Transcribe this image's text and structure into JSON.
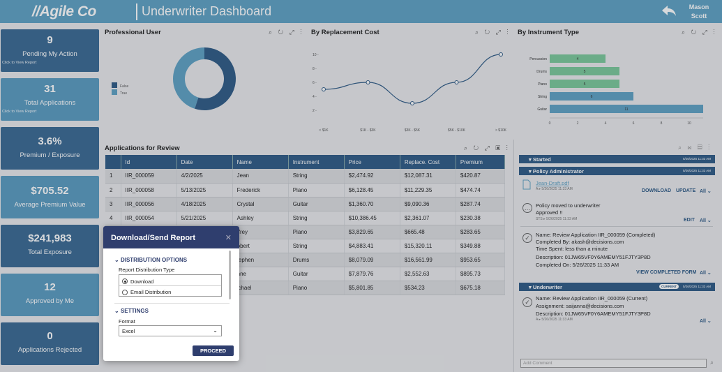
{
  "header": {
    "logo": "//Agile Co",
    "title": "Underwriter Dashboard",
    "user_first": "Mason",
    "user_last": "Scott"
  },
  "tiles": [
    {
      "value": "9",
      "label": "Pending My Action",
      "sub": "Click to View Report"
    },
    {
      "value": "31",
      "label": "Total Applications",
      "sub": "Click to View Report"
    },
    {
      "value": "3.6%",
      "label": "Premium / Exposure"
    },
    {
      "value": "$705.52",
      "label": "Average Premium Value"
    },
    {
      "value": "$241,983",
      "label": "Total Exposure"
    },
    {
      "value": "12",
      "label": "Approved by Me"
    },
    {
      "value": "0",
      "label": "Applications Rejected"
    }
  ],
  "panels": {
    "professional": "Professional User",
    "replacement": "By Replacement Cost",
    "instrument": "By Instrument Type",
    "grid": "Applications for Review"
  },
  "chart_data": [
    {
      "type": "pie",
      "title": "Professional User",
      "categories": [
        "False",
        "True"
      ],
      "values": [
        55,
        45
      ],
      "colors": [
        "#2f5b86",
        "#5fa2c4"
      ]
    },
    {
      "type": "line",
      "title": "By Replacement Cost",
      "categories": [
        "< $1K",
        "$1K - $3K",
        "$3K - $5K",
        "$5K - $10K",
        "> $10K"
      ],
      "values": [
        5,
        6,
        3,
        6,
        10
      ],
      "yticks": [
        "2 -",
        "4 -",
        "6 -",
        "8 -",
        "10 -"
      ],
      "ylim": [
        0,
        11
      ]
    },
    {
      "type": "bar",
      "title": "By Instrument Type",
      "categories": [
        "Percussion",
        "Drums",
        "Piano",
        "String",
        "Guitar"
      ],
      "values": [
        4,
        5,
        5,
        6,
        11
      ],
      "labels": [
        "4",
        "5",
        "5",
        "6",
        "11"
      ],
      "colors": [
        "#7bc89a",
        "#7bc89a",
        "#7bc89a",
        "#5fa2c4",
        "#5fa2c4"
      ],
      "xticks": [
        "0",
        "2",
        "4",
        "6",
        "8",
        "10"
      ],
      "xlim": [
        0,
        11
      ]
    }
  ],
  "grid": {
    "columns": [
      "",
      "Id",
      "Date",
      "Name",
      "Instrument",
      "Price",
      "Replace. Cost",
      "Premium"
    ],
    "rows": [
      [
        "1",
        "IIR_000059",
        "4/2/2025",
        "Jean",
        "String",
        "$2,474.92",
        "$12,087.31",
        "$420.87"
      ],
      [
        "2",
        "IIR_000058",
        "5/13/2025",
        "Frederick",
        "Piano",
        "$6,128.45",
        "$11,229.35",
        "$474.74"
      ],
      [
        "3",
        "IIR_000056",
        "4/18/2025",
        "Crystal",
        "Guitar",
        "$1,360.70",
        "$9,090.36",
        "$287.74"
      ],
      [
        "4",
        "IIR_000054",
        "5/21/2025",
        "Ashley",
        "String",
        "$10,386.45",
        "$2,361.07",
        "$230.38"
      ],
      [
        "5",
        "",
        "",
        "ffrey",
        "Piano",
        "$3,829.65",
        "$665.48",
        "$283.65"
      ],
      [
        "6",
        "",
        "",
        "obert",
        "String",
        "$4,883.41",
        "$15,320.11",
        "$349.88"
      ],
      [
        "7",
        "",
        "",
        "tephen",
        "Drums",
        "$8,079.09",
        "$16,561.99",
        "$953.65"
      ],
      [
        "8",
        "",
        "",
        "nne",
        "Guitar",
        "$7,879.76",
        "$2,552.63",
        "$895.73"
      ],
      [
        "9",
        "",
        "",
        "ichael",
        "Piano",
        "$5,801.85",
        "$534.23",
        "$675.18"
      ]
    ]
  },
  "modal": {
    "title": "Download/Send Report",
    "sec1": "DISTRIBUTION OPTIONS",
    "rdt": "Report Distribution Type",
    "opt1": "Download",
    "opt2": "Email Distribution",
    "sec2": "SETTINGS",
    "format_label": "Format",
    "format_value": "Excel",
    "proceed": "PROCEED"
  },
  "flow": {
    "started": "Started",
    "pa": "Policy Administrator",
    "uw": "Underwriter",
    "current": "CURRENT",
    "file": "Jean-Draft.pdf",
    "file_meta": "A  ▸  5/26/2025 11:33 AM",
    "download": "DOWNLOAD",
    "update": "UPDATE",
    "all": "All ⌄",
    "note1": "Policy moved to underwriter",
    "note2": "Approved !!",
    "note_meta": "STS  ▸  5/26/2025 11:33 AM",
    "edit": "EDIT",
    "c1": "Name: Review Application IIR_000059 (Completed)",
    "c2": "Completed By: akash@decisions.com",
    "c3": "Time Spent: less than a minute",
    "c4": "Description: 01JW65VF0Y6AMEMY51FJTY3P8D",
    "c5": "Completed On: 5/26/2025 11:33 AM",
    "view": "VIEW COMPLETED FORM",
    "u1": "Name: Review Application IIR_000059 (Current)",
    "u2": "Assignment: saijanna@decisions.com",
    "u3": "Description: 01JW65VF0Y6AMEMY51FJTY3P8D",
    "u_meta": "A  ▸  5/26/2025 11:33 AM",
    "comment": "Add Comment",
    "date": "5/26/2025 11:33 AM"
  }
}
